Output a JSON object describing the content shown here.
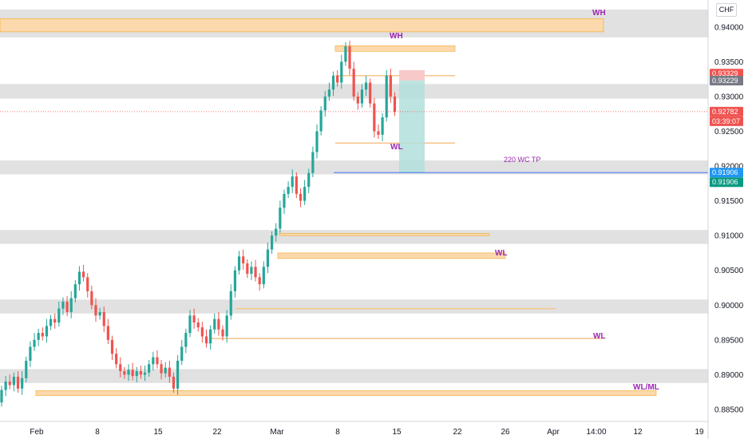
{
  "currency": "CHF",
  "colors": {
    "up": "#26a69a",
    "down": "#ef5350",
    "zone": "#dcdcdc",
    "orange": "#f5a623",
    "annotation": "#9c27b0",
    "target_fill": "#b2dfdb",
    "stop_fill": "#f8c9c9",
    "tp_line": "#2962ff"
  },
  "price_tags": [
    {
      "text": "0.93329",
      "bg": "#ef5350"
    },
    {
      "text": "0.93229",
      "bg": "#787b86"
    },
    {
      "text": "0.92782",
      "bg": "#ef5350"
    },
    {
      "text": "03:39:07",
      "bg": "#ef5350"
    },
    {
      "text": "0.91906",
      "bg": "#2196f3"
    },
    {
      "text": "0.91906",
      "bg": "#089981"
    }
  ],
  "annotations": {
    "wh_top": "WH",
    "wh_peak": "WH",
    "wl_upper": "WL",
    "tp": "220 WC TP",
    "wl_mid": "WL",
    "wl_low": "WL",
    "wl_ml": "WL/ML"
  },
  "chart_data": {
    "type": "candlestick",
    "ylim": [
      0.8835,
      0.9425
    ],
    "y_ticks": [
      0.885,
      0.89,
      0.895,
      0.9,
      0.905,
      0.91,
      0.915,
      0.92,
      0.925,
      0.93,
      0.935,
      0.94
    ],
    "y_tick_labels": [
      "0.88500",
      "0.89000",
      "0.89500",
      "0.90000",
      "0.90500",
      "0.91000",
      "0.91500",
      "0.92000",
      "0.92500",
      "0.93000",
      "0.93500",
      "0.94000"
    ],
    "x_tick_labels": [
      "Feb",
      "8",
      "15",
      "22",
      "Mar",
      "8",
      "15",
      "22",
      "26",
      "Apr",
      "14:00",
      "12",
      "19"
    ],
    "grid": false,
    "gray_zones": [
      [
        0.9405,
        0.9425
      ],
      [
        0.9405,
        0.9385
      ],
      [
        0.9318,
        0.9297
      ],
      [
        0.9208,
        0.9188
      ],
      [
        0.9108,
        0.9088
      ],
      [
        0.9008,
        0.8988
      ],
      [
        0.8908,
        0.8888
      ]
    ],
    "orange_zones": [
      {
        "top": 0.9412,
        "bottom": 0.9393
      },
      {
        "top": 0.9373,
        "bottom": 0.9365
      },
      {
        "top": 0.9103,
        "bottom": 0.91
      },
      {
        "top": 0.9075,
        "bottom": 0.9067
      },
      {
        "top": 0.8877,
        "bottom": 0.887
      }
    ],
    "orange_lines": [
      0.933,
      0.9233,
      0.8995,
      0.8952
    ],
    "current_price": 0.92782,
    "tp_price": 0.91906,
    "position": {
      "entry": 0.9323,
      "stop": 0.9338,
      "target": 0.919
    },
    "candles": [
      [
        0.886,
        0.8878
      ],
      [
        0.8878,
        0.889
      ],
      [
        0.889,
        0.8885
      ],
      [
        0.8885,
        0.8897
      ],
      [
        0.8897,
        0.888
      ],
      [
        0.888,
        0.8895
      ],
      [
        0.8895,
        0.892
      ],
      [
        0.892,
        0.894
      ],
      [
        0.894,
        0.895
      ],
      [
        0.895,
        0.896
      ],
      [
        0.896,
        0.8955
      ],
      [
        0.8955,
        0.897
      ],
      [
        0.897,
        0.898
      ],
      [
        0.898,
        0.8975
      ],
      [
        0.8975,
        0.8995
      ],
      [
        0.8995,
        0.9005
      ],
      [
        0.9005,
        0.899
      ],
      [
        0.899,
        0.901
      ],
      [
        0.901,
        0.903
      ],
      [
        0.903,
        0.9048
      ],
      [
        0.9048,
        0.904
      ],
      [
        0.904,
        0.902
      ],
      [
        0.902,
        0.9
      ],
      [
        0.9,
        0.8985
      ],
      [
        0.8985,
        0.899
      ],
      [
        0.899,
        0.897
      ],
      [
        0.897,
        0.895
      ],
      [
        0.895,
        0.893
      ],
      [
        0.893,
        0.8915
      ],
      [
        0.8915,
        0.8905
      ],
      [
        0.8905,
        0.89
      ],
      [
        0.89,
        0.8907
      ],
      [
        0.8907,
        0.8898
      ],
      [
        0.8898,
        0.8905
      ],
      [
        0.8905,
        0.89
      ],
      [
        0.89,
        0.8903
      ],
      [
        0.8903,
        0.8915
      ],
      [
        0.8915,
        0.8925
      ],
      [
        0.8925,
        0.8915
      ],
      [
        0.8915,
        0.8902
      ],
      [
        0.8902,
        0.891
      ],
      [
        0.891,
        0.8897
      ],
      [
        0.8897,
        0.888
      ],
      [
        0.888,
        0.892
      ],
      [
        0.892,
        0.894
      ],
      [
        0.894,
        0.896
      ],
      [
        0.896,
        0.8985
      ],
      [
        0.8985,
        0.8975
      ],
      [
        0.8975,
        0.8968
      ],
      [
        0.8968,
        0.8955
      ],
      [
        0.8955,
        0.8945
      ],
      [
        0.8945,
        0.8965
      ],
      [
        0.8965,
        0.898
      ],
      [
        0.898,
        0.8965
      ],
      [
        0.8965,
        0.8955
      ],
      [
        0.8955,
        0.8985
      ],
      [
        0.8985,
        0.902
      ],
      [
        0.902,
        0.905
      ],
      [
        0.905,
        0.907
      ],
      [
        0.907,
        0.906
      ],
      [
        0.906,
        0.9045
      ],
      [
        0.9045,
        0.9055
      ],
      [
        0.9055,
        0.904
      ],
      [
        0.904,
        0.903
      ],
      [
        0.903,
        0.9055
      ],
      [
        0.9055,
        0.908
      ],
      [
        0.908,
        0.91
      ],
      [
        0.91,
        0.911
      ],
      [
        0.911,
        0.914
      ],
      [
        0.914,
        0.916
      ],
      [
        0.916,
        0.917
      ],
      [
        0.917,
        0.9185
      ],
      [
        0.9185,
        0.916
      ],
      [
        0.916,
        0.915
      ],
      [
        0.915,
        0.917
      ],
      [
        0.917,
        0.919
      ],
      [
        0.919,
        0.922
      ],
      [
        0.922,
        0.925
      ],
      [
        0.925,
        0.928
      ],
      [
        0.928,
        0.93
      ],
      [
        0.93,
        0.931
      ],
      [
        0.931,
        0.933
      ],
      [
        0.933,
        0.932
      ],
      [
        0.932,
        0.935
      ],
      [
        0.935,
        0.9372
      ],
      [
        0.9372,
        0.934
      ],
      [
        0.934,
        0.93
      ],
      [
        0.93,
        0.929
      ],
      [
        0.929,
        0.931
      ],
      [
        0.931,
        0.932
      ],
      [
        0.932,
        0.929
      ],
      [
        0.929,
        0.925
      ],
      [
        0.925,
        0.9245
      ],
      [
        0.9245,
        0.927
      ],
      [
        0.927,
        0.933
      ],
      [
        0.933,
        0.93
      ],
      [
        0.93,
        0.9278
      ]
    ]
  }
}
